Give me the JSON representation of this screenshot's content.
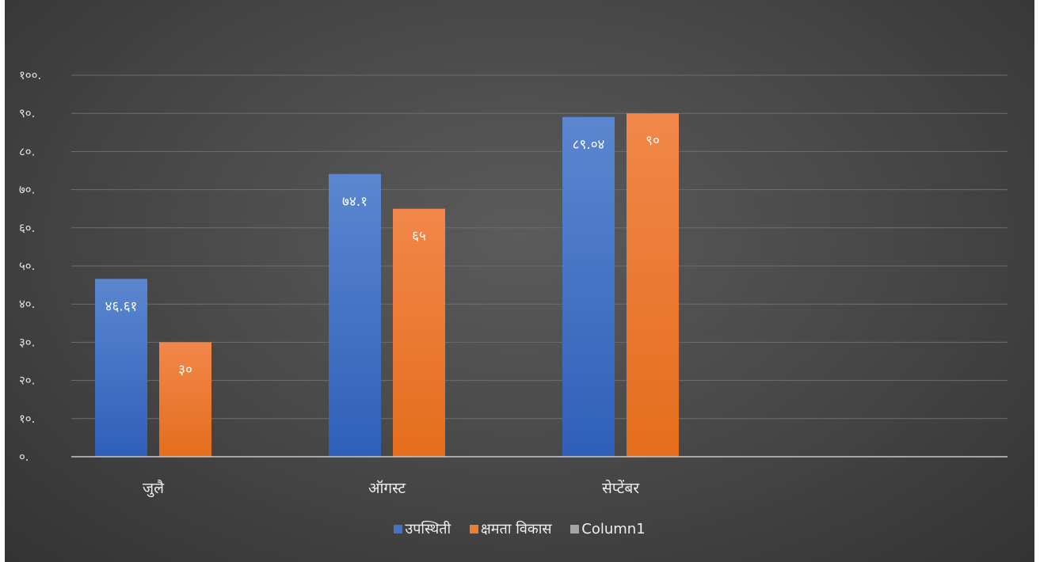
{
  "chart_data": {
    "type": "bar",
    "categories": [
      "जुलै",
      "ऑगस्ट",
      "सेप्टेंबर"
    ],
    "series": [
      {
        "name": "उपस्थिती",
        "values": [
          46.61,
          74.1,
          89.04
        ],
        "labels": [
          "४६.६१",
          "७४.१",
          "८९.०४"
        ],
        "color": "#4472c4"
      },
      {
        "name": "क्षमता विकास",
        "values": [
          30,
          65,
          90
        ],
        "labels": [
          "३०",
          "६५",
          "९०"
        ],
        "color": "#ed7d31"
      },
      {
        "name": "Column1",
        "values": [
          null,
          null,
          null
        ],
        "labels": [
          "",
          "",
          ""
        ],
        "color": "#a5a5a5"
      }
    ],
    "y_ticks": [
      "०.",
      "१०.",
      "२०.",
      "३०.",
      "४०.",
      "५०.",
      "६०.",
      "७०.",
      "८०.",
      "९०.",
      "१००."
    ],
    "ylim": [
      0,
      100
    ],
    "grid": true,
    "legend_position": "bottom"
  }
}
